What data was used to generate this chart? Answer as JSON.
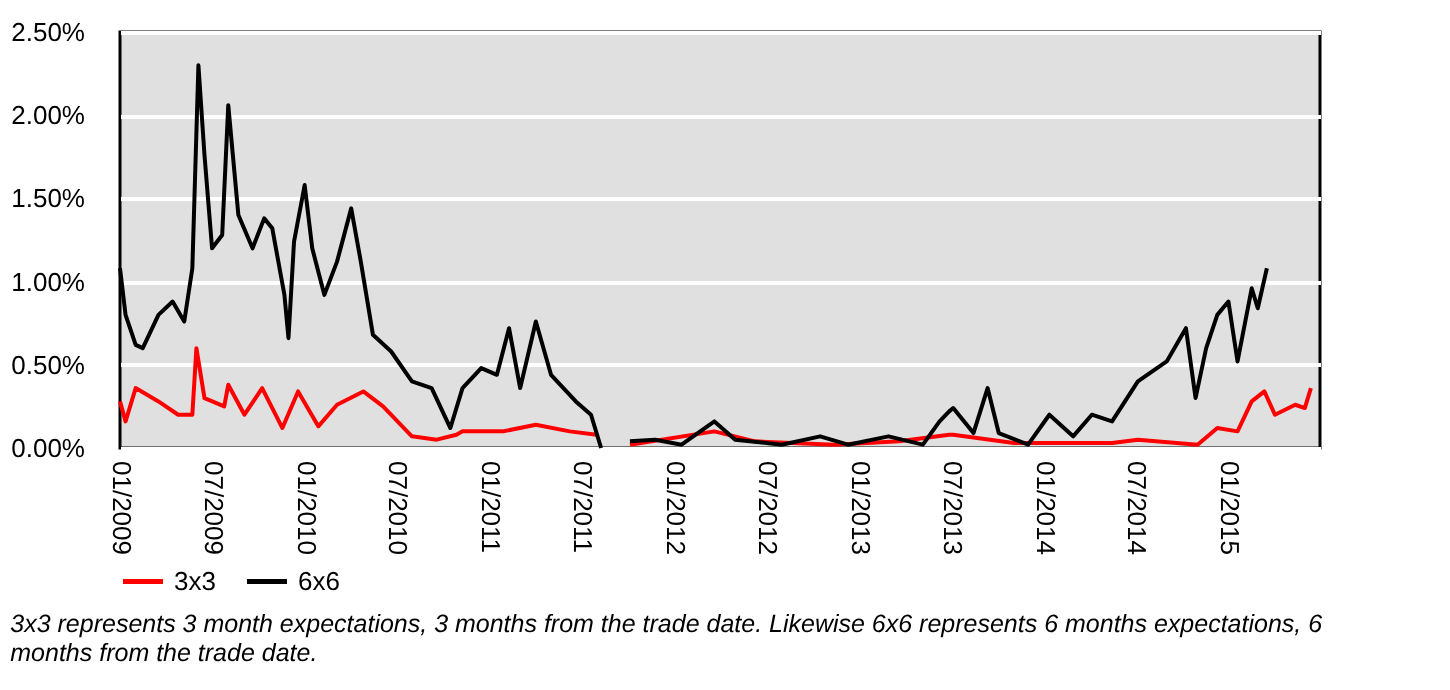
{
  "chart_data": {
    "type": "line",
    "annotations": [
      "3x3 represents 3 month expectations, 3 months from the trade date. Likewise 6x6 represents 6 months expectations, 6 months from the trade date."
    ],
    "xlim": [
      "2009-01-01",
      "2015-07-01"
    ],
    "xticks": [
      {
        "value": "2009-01-01",
        "label": "01/2009"
      },
      {
        "value": "2009-07-01",
        "label": "07/2009"
      },
      {
        "value": "2010-01-01",
        "label": "01/2010"
      },
      {
        "value": "2010-07-01",
        "label": "07/2010"
      },
      {
        "value": "2011-01-01",
        "label": "01/2011"
      },
      {
        "value": "2011-07-01",
        "label": "07/2011"
      },
      {
        "value": "2012-01-01",
        "label": "01/2012"
      },
      {
        "value": "2012-07-01",
        "label": "07/2012"
      },
      {
        "value": "2013-01-01",
        "label": "01/2013"
      },
      {
        "value": "2013-07-01",
        "label": "07/2013"
      },
      {
        "value": "2014-01-01",
        "label": "01/2014"
      },
      {
        "value": "2014-07-01",
        "label": "07/2014"
      },
      {
        "value": "2015-01-01",
        "label": "01/2015"
      }
    ],
    "ylim": [
      0,
      2.5
    ],
    "yticks": [
      {
        "value": 0,
        "label": "0.00%"
      },
      {
        "value": 0.5,
        "label": "0.50%"
      },
      {
        "value": 1,
        "label": "1.00%"
      },
      {
        "value": 1.5,
        "label": "1.50%"
      },
      {
        "value": 2,
        "label": "2.00%"
      },
      {
        "value": 2.5,
        "label": "2.50%"
      }
    ],
    "grid": "y",
    "legend": "bottom",
    "marker": "none",
    "line_style": "solid",
    "series": [
      {
        "name": "3x3",
        "color": "#ff0000",
        "x": [
          "2009-01-01",
          "2009-01-12",
          "2009-02-01",
          "2009-03-18",
          "2009-04-26",
          "2009-05-24",
          "2009-06-01",
          "2009-06-17",
          "2009-07-26",
          "2009-08-03",
          "2009-09-04",
          "2009-10-09",
          "2009-11-18",
          "2009-12-19",
          "2010-01-28",
          "2010-03-06",
          "2010-04-27",
          "2010-06-05",
          "2010-08-01",
          "2010-09-19",
          "2010-10-28",
          "2010-11-09",
          "2011-01-28",
          "2011-04-03",
          "2011-06-09",
          "2011-08-01",
          "2011-08-20",
          "2011-10-06",
          "2012-03-21",
          "2012-06-09",
          "2012-11-13",
          "2013-03-21",
          "2013-06-28",
          "2013-07-06",
          "2013-11-03",
          "2014-05-16",
          "2014-07-06",
          "2014-11-01",
          "2014-12-10",
          "2015-01-19",
          "2015-02-16",
          "2015-03-13",
          "2015-04-03",
          "2015-05-13",
          "2015-06-01",
          "2015-06-13"
        ],
        "values": [
          0.28,
          0.16,
          0.36,
          0.28,
          0.2,
          0.2,
          0.6,
          0.3,
          0.25,
          0.38,
          0.2,
          0.36,
          0.12,
          0.34,
          0.13,
          0.26,
          0.34,
          0.25,
          0.07,
          0.05,
          0.08,
          0.1,
          0.1,
          0.14,
          0.1,
          0.08,
          null,
          0.02,
          0.1,
          0.04,
          0.02,
          0.04,
          0.08,
          0.08,
          0.03,
          0.03,
          0.05,
          0.02,
          0.12,
          0.1,
          0.28,
          0.34,
          0.2,
          0.26,
          0.24,
          0.36
        ]
      },
      {
        "name": "6x6",
        "color": "#000000",
        "x": [
          "2009-01-01",
          "2009-01-12",
          "2009-02-01",
          "2009-02-15",
          "2009-03-18",
          "2009-04-15",
          "2009-05-08",
          "2009-05-24",
          "2009-06-05",
          "2009-06-17",
          "2009-07-02",
          "2009-07-22",
          "2009-08-03",
          "2009-08-23",
          "2009-09-20",
          "2009-10-13",
          "2009-10-29",
          "2009-11-22",
          "2009-11-30",
          "2009-12-11",
          "2010-01-01",
          "2010-01-16",
          "2010-02-09",
          "2010-03-06",
          "2010-04-03",
          "2010-04-22",
          "2010-05-16",
          "2010-06-21",
          "2010-08-01",
          "2010-09-09",
          "2010-10-16",
          "2010-11-09",
          "2010-12-16",
          "2011-01-16",
          "2011-02-09",
          "2011-03-03",
          "2011-04-03",
          "2011-05-03",
          "2011-06-21",
          "2011-07-21",
          "2011-08-10",
          "2011-08-20",
          "2011-10-06",
          "2011-11-25",
          "2012-01-16",
          "2012-03-21",
          "2012-05-01",
          "2012-08-01",
          "2012-10-16",
          "2012-12-10",
          "2013-02-28",
          "2013-05-07",
          "2013-06-09",
          "2013-06-28",
          "2013-07-06",
          "2013-08-15",
          "2013-09-12",
          "2013-10-04",
          "2013-12-01",
          "2014-01-12",
          "2014-02-28",
          "2014-04-06",
          "2014-05-16",
          "2014-07-06",
          "2014-09-01",
          "2014-10-09",
          "2014-10-28",
          "2014-11-18",
          "2014-12-10",
          "2015-01-01",
          "2015-01-19",
          "2015-02-16",
          "2015-02-28",
          "2015-03-18"
        ],
        "values": [
          1.08,
          0.8,
          0.62,
          0.6,
          0.8,
          0.88,
          0.76,
          1.08,
          2.3,
          1.76,
          1.2,
          1.28,
          2.06,
          1.4,
          1.2,
          1.38,
          1.32,
          0.92,
          0.66,
          1.24,
          1.58,
          1.2,
          0.92,
          1.12,
          1.44,
          1.12,
          0.68,
          0.58,
          0.4,
          0.36,
          0.12,
          0.36,
          0.48,
          0.44,
          0.72,
          0.36,
          0.76,
          0.44,
          0.28,
          0.2,
          0.0,
          null,
          0.04,
          0.05,
          0.02,
          0.16,
          0.05,
          0.02,
          0.07,
          0.02,
          0.07,
          0.02,
          0.16,
          0.22,
          0.24,
          0.09,
          0.36,
          0.09,
          0.02,
          0.2,
          0.07,
          0.2,
          0.16,
          0.4,
          0.52,
          0.72,
          0.3,
          0.6,
          0.8,
          0.88,
          0.52,
          0.96,
          0.84,
          1.08
        ]
      }
    ]
  }
}
